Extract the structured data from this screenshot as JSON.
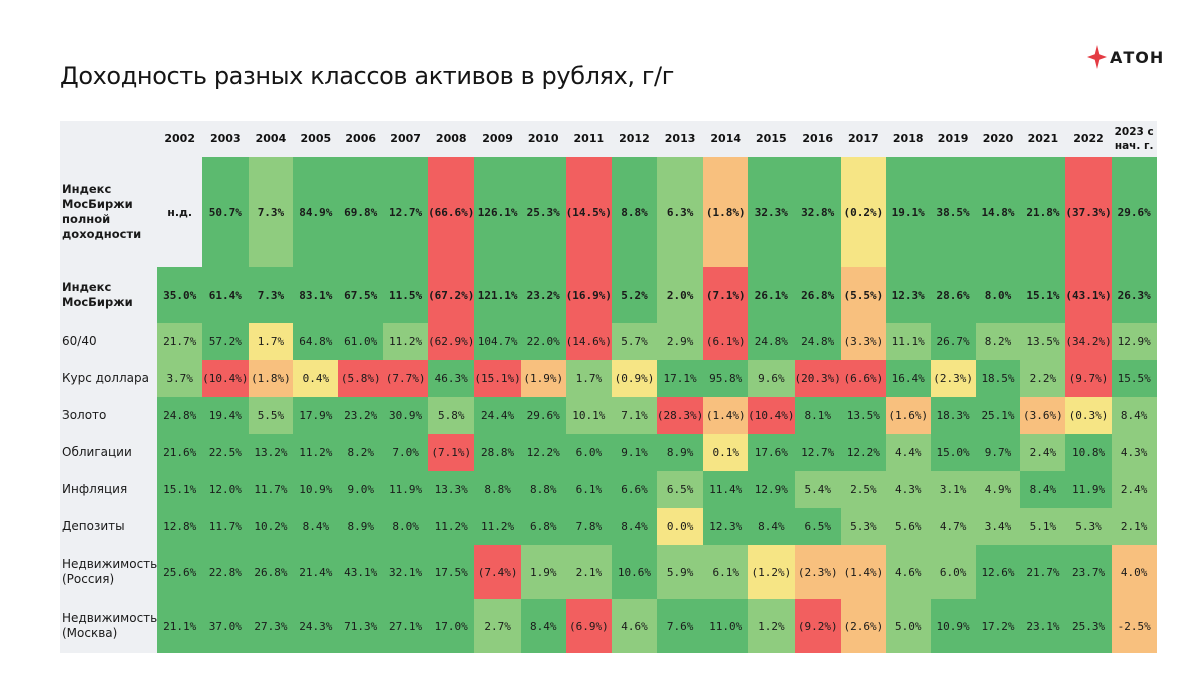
{
  "title": "Доходность разных классов активов в рублях, г/г",
  "logo": {
    "text": "АТОН",
    "mark_color": "#e43b43"
  },
  "colors": {
    "dark_green": "#5cba6f",
    "light_green": "#8fcc7f",
    "yellow": "#f6e585",
    "orange": "#f8c07e",
    "red": "#f25f5f",
    "label_bg": "#eef0f3"
  },
  "chart_data": {
    "type": "heatmap",
    "title": "Доходность разных классов активов в рублях, г/г",
    "columns": [
      "2002",
      "2003",
      "2004",
      "2005",
      "2006",
      "2007",
      "2008",
      "2009",
      "2010",
      "2011",
      "2012",
      "2013",
      "2014",
      "2015",
      "2016",
      "2017",
      "2018",
      "2019",
      "2020",
      "2021",
      "2022",
      "2023 с нач. г."
    ],
    "rows": [
      {
        "label": "Индекс МосБиржи полной доходности",
        "bold": true,
        "display": [
          "н.д.",
          "50.7%",
          "7.3%",
          "84.9%",
          "69.8%",
          "12.7%",
          "(66.6%)",
          "126.1%",
          "25.3%",
          "(14.5%)",
          "8.8%",
          "6.3%",
          "(1.8%)",
          "32.3%",
          "32.8%",
          "(0.2%)",
          "19.1%",
          "38.5%",
          "14.8%",
          "21.8%",
          "(37.3%)",
          "29.6%"
        ],
        "values": [
          null,
          50.7,
          7.3,
          84.9,
          69.8,
          12.7,
          -66.6,
          126.1,
          25.3,
          -14.5,
          8.8,
          6.3,
          -1.8,
          32.3,
          32.8,
          -0.2,
          19.1,
          38.5,
          14.8,
          21.8,
          -37.3,
          29.6
        ]
      },
      {
        "label": "Индекс МосБиржи",
        "bold": true,
        "display": [
          "35.0%",
          "61.4%",
          "7.3%",
          "83.1%",
          "67.5%",
          "11.5%",
          "(67.2%)",
          "121.1%",
          "23.2%",
          "(16.9%)",
          "5.2%",
          "2.0%",
          "(7.1%)",
          "26.1%",
          "26.8%",
          "(5.5%)",
          "12.3%",
          "28.6%",
          "8.0%",
          "15.1%",
          "(43.1%)",
          "26.3%"
        ],
        "values": [
          35.0,
          61.4,
          7.3,
          83.1,
          67.5,
          11.5,
          -67.2,
          121.1,
          23.2,
          -16.9,
          5.2,
          2.0,
          -7.1,
          26.1,
          26.8,
          -5.5,
          12.3,
          28.6,
          8.0,
          15.1,
          -43.1,
          26.3
        ]
      },
      {
        "label": "60/40",
        "bold": false,
        "display": [
          "21.7%",
          "57.2%",
          "1.7%",
          "64.8%",
          "61.0%",
          "11.2%",
          "(62.9%)",
          "104.7%",
          "22.0%",
          "(14.6%)",
          "5.7%",
          "2.9%",
          "(6.1%)",
          "24.8%",
          "24.8%",
          "(3.3%)",
          "11.1%",
          "26.7%",
          "8.2%",
          "13.5%",
          "(34.2%)",
          "12.9%"
        ],
        "values": [
          21.7,
          57.2,
          1.7,
          64.8,
          61.0,
          11.2,
          -62.9,
          104.7,
          22.0,
          -14.6,
          5.7,
          2.9,
          -6.1,
          24.8,
          24.8,
          -3.3,
          11.1,
          26.7,
          8.2,
          13.5,
          -34.2,
          12.9
        ]
      },
      {
        "label": "Курс доллара",
        "bold": false,
        "display": [
          "3.7%",
          "(10.4%)",
          "(1.8%)",
          "0.4%",
          "(5.8%)",
          "(7.7%)",
          "46.3%",
          "(15.1%)",
          "(1.9%)",
          "1.7%",
          "(0.9%)",
          "17.1%",
          "95.8%",
          "9.6%",
          "(20.3%)",
          "(6.6%)",
          "16.4%",
          "(2.3%)",
          "18.5%",
          "2.2%",
          "(9.7%)",
          "15.5%"
        ],
        "values": [
          3.7,
          -10.4,
          -1.8,
          0.4,
          -5.8,
          -7.7,
          46.3,
          -15.1,
          -1.9,
          1.7,
          -0.9,
          17.1,
          95.8,
          9.6,
          -20.3,
          -6.6,
          16.4,
          -2.3,
          18.5,
          2.2,
          -9.7,
          15.5
        ]
      },
      {
        "label": "Золото",
        "bold": false,
        "display": [
          "24.8%",
          "19.4%",
          "5.5%",
          "17.9%",
          "23.2%",
          "30.9%",
          "5.8%",
          "24.4%",
          "29.6%",
          "10.1%",
          "7.1%",
          "(28.3%)",
          "(1.4%)",
          "(10.4%)",
          "8.1%",
          "13.5%",
          "(1.6%)",
          "18.3%",
          "25.1%",
          "(3.6%)",
          "(0.3%)",
          "8.4%"
        ],
        "values": [
          24.8,
          19.4,
          5.5,
          17.9,
          23.2,
          30.9,
          5.8,
          24.4,
          29.6,
          10.1,
          7.1,
          -28.3,
          -1.4,
          -10.4,
          8.1,
          13.5,
          -1.6,
          18.3,
          25.1,
          -3.6,
          -0.3,
          8.4
        ]
      },
      {
        "label": "Облигации",
        "bold": false,
        "display": [
          "21.6%",
          "22.5%",
          "13.2%",
          "11.2%",
          "8.2%",
          "7.0%",
          "(7.1%)",
          "28.8%",
          "12.2%",
          "6.0%",
          "9.1%",
          "8.9%",
          "0.1%",
          "17.6%",
          "12.7%",
          "12.2%",
          "4.4%",
          "15.0%",
          "9.7%",
          "2.4%",
          "10.8%",
          "4.3%"
        ],
        "values": [
          21.6,
          22.5,
          13.2,
          11.2,
          8.2,
          7.0,
          -7.1,
          28.8,
          12.2,
          6.0,
          9.1,
          8.9,
          0.1,
          17.6,
          12.7,
          12.2,
          4.4,
          15.0,
          9.7,
          2.4,
          10.8,
          4.3
        ]
      },
      {
        "label": "Инфляция",
        "bold": false,
        "display": [
          "15.1%",
          "12.0%",
          "11.7%",
          "10.9%",
          "9.0%",
          "11.9%",
          "13.3%",
          "8.8%",
          "8.8%",
          "6.1%",
          "6.6%",
          "6.5%",
          "11.4%",
          "12.9%",
          "5.4%",
          "2.5%",
          "4.3%",
          "3.1%",
          "4.9%",
          "8.4%",
          "11.9%",
          "2.4%"
        ],
        "values": [
          15.1,
          12.0,
          11.7,
          10.9,
          9.0,
          11.9,
          13.3,
          8.8,
          8.8,
          6.1,
          6.6,
          6.5,
          11.4,
          12.9,
          5.4,
          2.5,
          4.3,
          3.1,
          4.9,
          8.4,
          11.9,
          2.4
        ]
      },
      {
        "label": "Депозиты",
        "bold": false,
        "display": [
          "12.8%",
          "11.7%",
          "10.2%",
          "8.4%",
          "8.9%",
          "8.0%",
          "11.2%",
          "11.2%",
          "6.8%",
          "7.8%",
          "8.4%",
          "0.0%",
          "12.3%",
          "8.4%",
          "6.5%",
          "5.3%",
          "5.6%",
          "4.7%",
          "3.4%",
          "5.1%",
          "5.3%",
          "2.1%"
        ],
        "values": [
          12.8,
          11.7,
          10.2,
          8.4,
          8.9,
          8.0,
          11.2,
          11.2,
          6.8,
          7.8,
          8.4,
          0.0,
          12.3,
          8.4,
          6.5,
          5.3,
          5.6,
          4.7,
          3.4,
          5.1,
          5.3,
          2.1
        ]
      },
      {
        "label": "Недвижимость (Россия)",
        "bold": false,
        "display": [
          "25.6%",
          "22.8%",
          "26.8%",
          "21.4%",
          "43.1%",
          "32.1%",
          "17.5%",
          "(7.4%)",
          "1.9%",
          "2.1%",
          "10.6%",
          "5.9%",
          "6.1%",
          "(1.2%)",
          "(2.3%)",
          "(1.4%)",
          "4.6%",
          "6.0%",
          "12.6%",
          "21.7%",
          "23.7%",
          "4.0%"
        ],
        "values": [
          25.6,
          22.8,
          26.8,
          21.4,
          43.1,
          32.1,
          17.5,
          -7.4,
          1.9,
          2.1,
          10.6,
          5.9,
          6.1,
          -1.2,
          -2.3,
          -1.4,
          4.6,
          6.0,
          12.6,
          21.7,
          23.7,
          4.0
        ]
      },
      {
        "label": "Недвижимость (Москва)",
        "bold": false,
        "display": [
          "21.1%",
          "37.0%",
          "27.3%",
          "24.3%",
          "71.3%",
          "27.1%",
          "17.0%",
          "2.7%",
          "8.4%",
          "(6.9%)",
          "4.6%",
          "7.6%",
          "11.0%",
          "1.2%",
          "(9.2%)",
          "(2.6%)",
          "5.0%",
          "10.9%",
          "17.2%",
          "23.1%",
          "25.3%",
          "-2.5%"
        ],
        "values": [
          21.1,
          37.0,
          27.3,
          24.3,
          71.3,
          27.1,
          17.0,
          2.7,
          8.4,
          -6.9,
          4.6,
          7.6,
          11.0,
          1.2,
          -9.2,
          -2.6,
          5.0,
          10.9,
          17.2,
          23.1,
          25.3,
          -2.5
        ]
      }
    ],
    "cell_colors": [
      [
        "label_bg",
        "dark_green",
        "light_green",
        "dark_green",
        "dark_green",
        "dark_green",
        "red",
        "dark_green",
        "dark_green",
        "red",
        "dark_green",
        "light_green",
        "orange",
        "dark_green",
        "dark_green",
        "yellow",
        "dark_green",
        "dark_green",
        "dark_green",
        "dark_green",
        "red",
        "dark_green"
      ],
      [
        "dark_green",
        "dark_green",
        "dark_green",
        "dark_green",
        "dark_green",
        "dark_green",
        "red",
        "dark_green",
        "dark_green",
        "red",
        "dark_green",
        "light_green",
        "red",
        "dark_green",
        "dark_green",
        "orange",
        "dark_green",
        "dark_green",
        "dark_green",
        "dark_green",
        "red",
        "dark_green"
      ],
      [
        "light_green",
        "dark_green",
        "yellow",
        "dark_green",
        "dark_green",
        "light_green",
        "red",
        "dark_green",
        "dark_green",
        "red",
        "light_green",
        "light_green",
        "red",
        "dark_green",
        "dark_green",
        "orange",
        "light_green",
        "dark_green",
        "light_green",
        "light_green",
        "red",
        "light_green"
      ],
      [
        "light_green",
        "red",
        "orange",
        "yellow",
        "red",
        "red",
        "dark_green",
        "red",
        "orange",
        "light_green",
        "yellow",
        "dark_green",
        "dark_green",
        "light_green",
        "red",
        "red",
        "dark_green",
        "yellow",
        "dark_green",
        "light_green",
        "red",
        "dark_green"
      ],
      [
        "dark_green",
        "dark_green",
        "light_green",
        "dark_green",
        "dark_green",
        "dark_green",
        "light_green",
        "dark_green",
        "dark_green",
        "light_green",
        "light_green",
        "red",
        "orange",
        "red",
        "dark_green",
        "dark_green",
        "orange",
        "dark_green",
        "dark_green",
        "orange",
        "yellow",
        "light_green"
      ],
      [
        "dark_green",
        "dark_green",
        "dark_green",
        "dark_green",
        "dark_green",
        "dark_green",
        "red",
        "dark_green",
        "dark_green",
        "dark_green",
        "dark_green",
        "dark_green",
        "yellow",
        "dark_green",
        "dark_green",
        "dark_green",
        "light_green",
        "dark_green",
        "dark_green",
        "light_green",
        "dark_green",
        "light_green"
      ],
      [
        "dark_green",
        "dark_green",
        "dark_green",
        "dark_green",
        "dark_green",
        "dark_green",
        "dark_green",
        "dark_green",
        "dark_green",
        "dark_green",
        "dark_green",
        "light_green",
        "dark_green",
        "dark_green",
        "light_green",
        "light_green",
        "light_green",
        "light_green",
        "light_green",
        "dark_green",
        "dark_green",
        "light_green"
      ],
      [
        "dark_green",
        "dark_green",
        "dark_green",
        "dark_green",
        "dark_green",
        "dark_green",
        "dark_green",
        "dark_green",
        "dark_green",
        "dark_green",
        "dark_green",
        "yellow",
        "dark_green",
        "dark_green",
        "dark_green",
        "light_green",
        "light_green",
        "light_green",
        "light_green",
        "light_green",
        "light_green",
        "light_green"
      ],
      [
        "dark_green",
        "dark_green",
        "dark_green",
        "dark_green",
        "dark_green",
        "dark_green",
        "dark_green",
        "red",
        "light_green",
        "light_green",
        "dark_green",
        "light_green",
        "light_green",
        "yellow",
        "orange",
        "orange",
        "light_green",
        "light_green",
        "dark_green",
        "dark_green",
        "dark_green",
        "orange"
      ],
      [
        "dark_green",
        "dark_green",
        "dark_green",
        "dark_green",
        "dark_green",
        "dark_green",
        "dark_green",
        "light_green",
        "dark_green",
        "red",
        "light_green",
        "dark_green",
        "dark_green",
        "light_green",
        "red",
        "orange",
        "light_green",
        "dark_green",
        "dark_green",
        "dark_green",
        "dark_green",
        "orange"
      ]
    ]
  }
}
